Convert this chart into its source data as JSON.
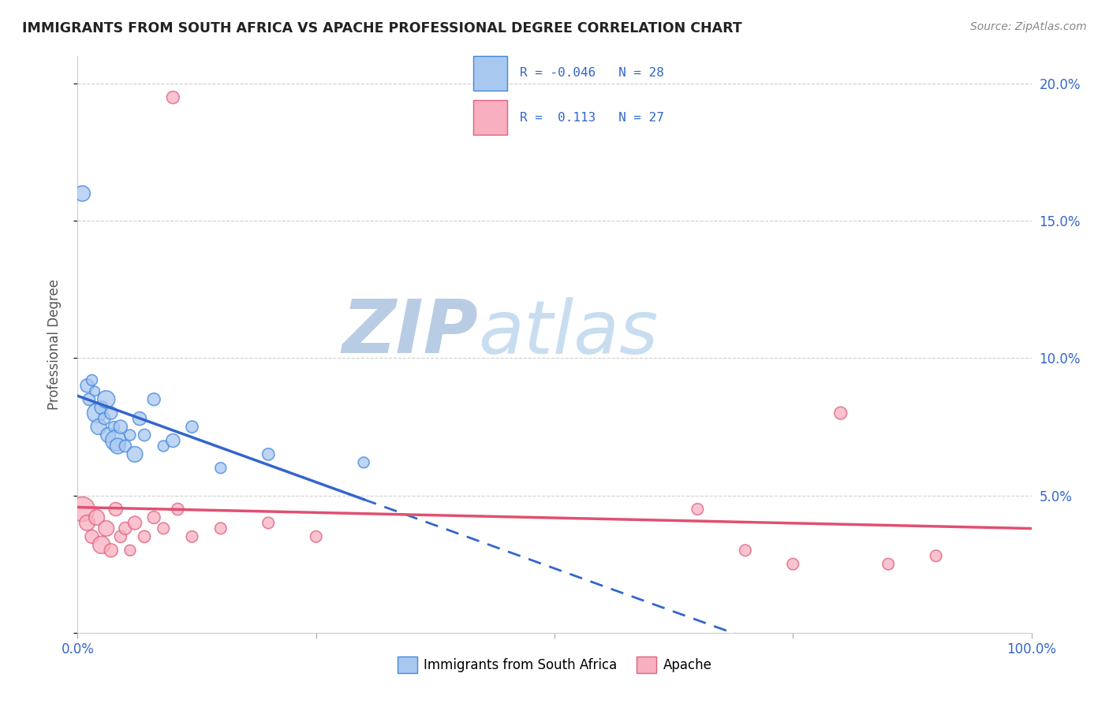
{
  "title": "IMMIGRANTS FROM SOUTH AFRICA VS APACHE PROFESSIONAL DEGREE CORRELATION CHART",
  "source_text": "Source: ZipAtlas.com",
  "ylabel": "Professional Degree",
  "r_blue": -0.046,
  "n_blue": 28,
  "r_pink": 0.113,
  "n_pink": 27,
  "blue_x": [
    0.5,
    1.0,
    1.2,
    1.5,
    1.8,
    2.0,
    2.2,
    2.5,
    2.8,
    3.0,
    3.2,
    3.5,
    3.8,
    4.0,
    4.2,
    4.5,
    5.0,
    5.5,
    6.0,
    6.5,
    7.0,
    8.0,
    9.0,
    10.0,
    12.0,
    15.0,
    20.0,
    30.0
  ],
  "blue_y": [
    16.0,
    9.0,
    8.5,
    9.2,
    8.8,
    8.0,
    7.5,
    8.2,
    7.8,
    8.5,
    7.2,
    8.0,
    7.5,
    7.0,
    6.8,
    7.5,
    6.8,
    7.2,
    6.5,
    7.8,
    7.2,
    8.5,
    6.8,
    7.0,
    7.5,
    6.0,
    6.5,
    6.2
  ],
  "blue_sizes": [
    200,
    150,
    120,
    100,
    80,
    300,
    200,
    150,
    120,
    250,
    180,
    130,
    100,
    350,
    200,
    150,
    120,
    100,
    200,
    150,
    120,
    130,
    100,
    150,
    120,
    100,
    120,
    100
  ],
  "pink_x": [
    0.5,
    1.0,
    1.5,
    2.0,
    2.5,
    3.0,
    3.5,
    4.0,
    4.5,
    5.0,
    5.5,
    6.0,
    7.0,
    8.0,
    9.0,
    10.0,
    10.5,
    12.0,
    15.0,
    20.0,
    25.0,
    65.0,
    70.0,
    75.0,
    80.0,
    85.0,
    90.0
  ],
  "pink_y": [
    4.5,
    4.0,
    3.5,
    4.2,
    3.2,
    3.8,
    3.0,
    4.5,
    3.5,
    3.8,
    3.0,
    4.0,
    3.5,
    4.2,
    3.8,
    19.5,
    4.5,
    3.5,
    3.8,
    4.0,
    3.5,
    4.5,
    3.0,
    2.5,
    8.0,
    2.5,
    2.8
  ],
  "pink_sizes": [
    500,
    200,
    150,
    200,
    250,
    200,
    150,
    150,
    120,
    130,
    100,
    150,
    120,
    130,
    110,
    130,
    120,
    110,
    110,
    110,
    110,
    110,
    110,
    110,
    130,
    110,
    110
  ],
  "xlim": [
    0,
    100
  ],
  "ylim": [
    0,
    21
  ],
  "ytick_positions": [
    0,
    5,
    10,
    15,
    20
  ],
  "ytick_right_labels": [
    "",
    "5.0%",
    "10.0%",
    "15.0%",
    "20.0%"
  ],
  "xtick_positions": [
    0,
    25,
    50,
    75,
    100
  ],
  "xtick_labels": [
    "0.0%",
    "",
    "",
    "",
    "100.0%"
  ],
  "blue_color": "#a8c8f0",
  "pink_color": "#f8b0c0",
  "blue_edge_color": "#4488dd",
  "pink_edge_color": "#e06080",
  "blue_line_color": "#3366cc",
  "pink_line_color": "#e05070",
  "background_color": "#ffffff",
  "watermark_zip": "ZIP",
  "watermark_atlas": "atlas",
  "watermark_color": "#c8d8ee",
  "grid_color": "#bbbbbb",
  "legend_r_color": "#3366cc",
  "title_color": "#222222",
  "source_color": "#888888",
  "ylabel_color": "#555555"
}
